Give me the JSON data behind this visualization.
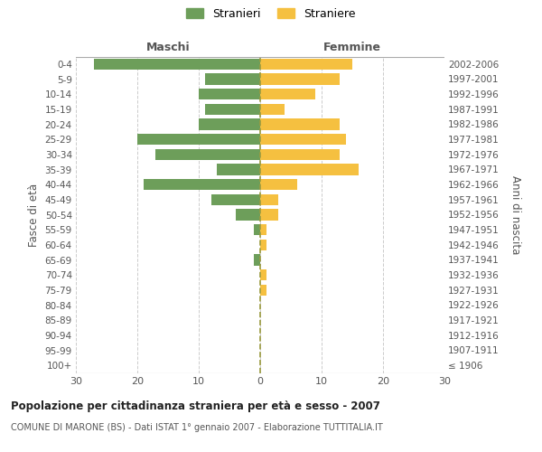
{
  "age_groups": [
    "100+",
    "95-99",
    "90-94",
    "85-89",
    "80-84",
    "75-79",
    "70-74",
    "65-69",
    "60-64",
    "55-59",
    "50-54",
    "45-49",
    "40-44",
    "35-39",
    "30-34",
    "25-29",
    "20-24",
    "15-19",
    "10-14",
    "5-9",
    "0-4"
  ],
  "birth_years": [
    "≤ 1906",
    "1907-1911",
    "1912-1916",
    "1917-1921",
    "1922-1926",
    "1927-1931",
    "1932-1936",
    "1937-1941",
    "1942-1946",
    "1947-1951",
    "1952-1956",
    "1957-1961",
    "1962-1966",
    "1967-1971",
    "1972-1976",
    "1977-1981",
    "1982-1986",
    "1987-1991",
    "1992-1996",
    "1997-2001",
    "2002-2006"
  ],
  "males": [
    0,
    0,
    0,
    0,
    0,
    0,
    0,
    1,
    0,
    1,
    4,
    8,
    19,
    7,
    17,
    20,
    10,
    9,
    10,
    9,
    27
  ],
  "females": [
    0,
    0,
    0,
    0,
    0,
    1,
    1,
    0,
    1,
    1,
    3,
    3,
    6,
    16,
    13,
    14,
    13,
    4,
    9,
    13,
    15
  ],
  "male_color": "#6d9e5a",
  "female_color": "#f5c040",
  "center_line_color": "#9b9b40",
  "background_color": "#ffffff",
  "grid_color": "#cccccc",
  "title": "Popolazione per cittadinanza straniera per età e sesso - 2007",
  "subtitle": "COMUNE DI MARONE (BS) - Dati ISTAT 1° gennaio 2007 - Elaborazione TUTTITALIA.IT",
  "ylabel_left": "Fasce di età",
  "ylabel_right": "Anni di nascita",
  "xlabel_left": "Maschi",
  "xlabel_right": "Femmine",
  "legend_male": "Stranieri",
  "legend_female": "Straniere",
  "xlim": 30,
  "bar_height": 0.75
}
